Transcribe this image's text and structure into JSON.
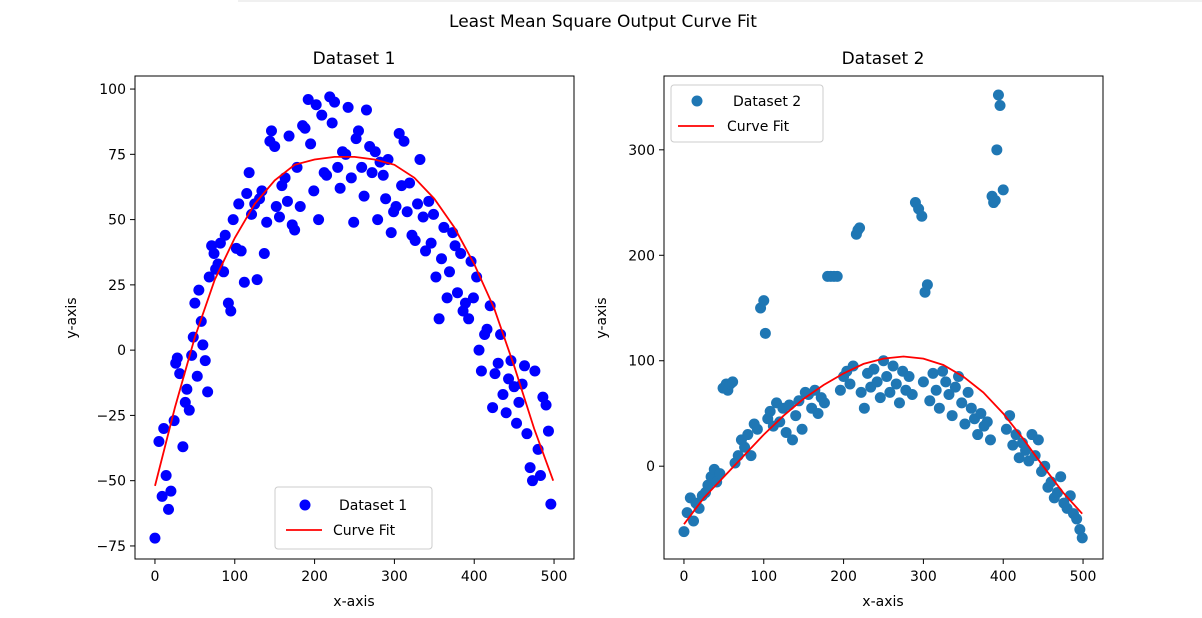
{
  "suptitle": "Least Mean Square Output Curve Fit",
  "chart_data": [
    {
      "type": "scatter",
      "title": "Dataset 1",
      "xlabel": "x-axis",
      "ylabel": "y-axis",
      "xlim": [
        -25,
        525
      ],
      "ylim": [
        -80,
        105
      ],
      "xticks": [
        0,
        100,
        200,
        300,
        400,
        500
      ],
      "yticks": [
        -75,
        -50,
        -25,
        0,
        25,
        50,
        75,
        100
      ],
      "ytick_labels": [
        "−75",
        "−50",
        "−25",
        "0",
        "25",
        "50",
        "75",
        "100"
      ],
      "legend_position": "lower center",
      "series": [
        {
          "name": "Dataset 1",
          "kind": "scatter",
          "color": "#0000ff",
          "x": [
            0,
            5,
            9,
            11,
            14,
            17,
            20,
            24,
            26,
            28,
            31,
            35,
            38,
            40,
            43,
            46,
            48,
            50,
            53,
            55,
            58,
            60,
            63,
            66,
            68,
            71,
            74,
            76,
            79,
            82,
            86,
            88,
            92,
            95,
            98,
            102,
            105,
            108,
            112,
            115,
            118,
            121,
            125,
            128,
            131,
            134,
            137,
            140,
            144,
            146,
            150,
            152,
            156,
            159,
            163,
            166,
            168,
            172,
            175,
            178,
            182,
            185,
            188,
            192,
            195,
            199,
            202,
            205,
            209,
            212,
            215,
            219,
            222,
            225,
            229,
            232,
            235,
            239,
            242,
            246,
            249,
            252,
            255,
            259,
            262,
            265,
            269,
            272,
            276,
            279,
            282,
            286,
            289,
            292,
            296,
            299,
            302,
            306,
            309,
            312,
            316,
            319,
            322,
            326,
            329,
            332,
            336,
            339,
            343,
            346,
            349,
            352,
            356,
            359,
            362,
            366,
            369,
            373,
            376,
            379,
            383,
            386,
            389,
            393,
            396,
            399,
            403,
            406,
            409,
            413,
            416,
            420,
            423,
            426,
            430,
            433,
            436,
            440,
            443,
            446,
            450,
            453,
            456,
            460,
            463,
            466,
            470,
            473,
            476,
            480,
            483,
            486,
            490,
            493,
            496
          ],
          "y": [
            -72,
            -35,
            -56,
            -30,
            -48,
            -61,
            -54,
            -27,
            -5,
            -3,
            -9,
            -37,
            -20,
            -15,
            -23,
            -2,
            5,
            18,
            -10,
            23,
            11,
            2,
            -4,
            -16,
            28,
            40,
            37,
            31,
            33,
            41,
            30,
            44,
            18,
            15,
            50,
            39,
            56,
            38,
            26,
            60,
            68,
            52,
            56,
            27,
            58,
            61,
            37,
            49,
            80,
            84,
            78,
            55,
            51,
            63,
            66,
            57,
            82,
            48,
            46,
            70,
            55,
            86,
            85,
            96,
            79,
            61,
            94,
            50,
            90,
            68,
            67,
            97,
            87,
            95,
            70,
            62,
            76,
            75,
            93,
            66,
            49,
            81,
            84,
            70,
            59,
            92,
            78,
            68,
            76,
            50,
            72,
            67,
            58,
            73,
            45,
            53,
            55,
            83,
            63,
            80,
            53,
            64,
            44,
            42,
            56,
            73,
            51,
            38,
            57,
            41,
            52,
            28,
            12,
            35,
            47,
            20,
            30,
            45,
            40,
            22,
            37,
            15,
            18,
            12,
            34,
            20,
            28,
            0,
            -8,
            6,
            8,
            17,
            -22,
            -9,
            -5,
            6,
            -17,
            -24,
            -11,
            -4,
            -14,
            -28,
            -20,
            -13,
            -6,
            -32,
            -45,
            -50,
            -8,
            -38,
            -48,
            -18,
            -21,
            -31,
            -59
          ]
        },
        {
          "name": "Curve Fit",
          "kind": "line",
          "color": "#ff0000",
          "x": [
            0,
            25,
            50,
            75,
            100,
            125,
            150,
            175,
            200,
            225,
            250,
            275,
            300,
            325,
            350,
            375,
            400,
            425,
            450,
            475,
            499
          ],
          "y": [
            -52,
            -22,
            5,
            27,
            43,
            56,
            65,
            71,
            73,
            74,
            74,
            73,
            71,
            66,
            58,
            47,
            33,
            16,
            -6,
            -30,
            -50
          ]
        }
      ]
    },
    {
      "type": "scatter",
      "title": "Dataset 2",
      "xlabel": "x-axis",
      "ylabel": "y-axis",
      "xlim": [
        -25,
        525
      ],
      "ylim": [
        -88,
        370
      ],
      "xticks": [
        0,
        100,
        200,
        300,
        400,
        500
      ],
      "yticks": [
        0,
        100,
        200,
        300
      ],
      "ytick_labels": [
        "0",
        "100",
        "200",
        "300"
      ],
      "legend_position": "upper left",
      "series": [
        {
          "name": "Dataset 2",
          "kind": "scatter",
          "color": "#1f77b4",
          "x": [
            0,
            4,
            8,
            12,
            15,
            19,
            23,
            27,
            30,
            34,
            38,
            41,
            45,
            49,
            53,
            55,
            58,
            61,
            64,
            68,
            72,
            76,
            80,
            84,
            88,
            92,
            96,
            100,
            102,
            105,
            108,
            112,
            116,
            120,
            124,
            128,
            132,
            136,
            140,
            144,
            148,
            152,
            156,
            160,
            164,
            168,
            172,
            176,
            180,
            184,
            188,
            192,
            196,
            200,
            204,
            208,
            212,
            216,
            218,
            220,
            222,
            226,
            230,
            234,
            238,
            242,
            246,
            250,
            254,
            258,
            262,
            266,
            270,
            274,
            278,
            282,
            286,
            290,
            294,
            298,
            300,
            302,
            305,
            308,
            312,
            316,
            320,
            324,
            328,
            332,
            336,
            340,
            344,
            348,
            352,
            356,
            360,
            364,
            368,
            372,
            376,
            380,
            384,
            386,
            388,
            390,
            392,
            394,
            396,
            400,
            404,
            408,
            412,
            416,
            420,
            424,
            428,
            432,
            436,
            440,
            444,
            448,
            452,
            456,
            460,
            464,
            468,
            472,
            476,
            480,
            484,
            488,
            492,
            496,
            499
          ],
          "y": [
            -62,
            -44,
            -30,
            -52,
            -35,
            -40,
            -28,
            -25,
            -18,
            -10,
            -3,
            -15,
            -7,
            74,
            78,
            72,
            78,
            80,
            3,
            10,
            25,
            18,
            30,
            10,
            40,
            35,
            150,
            157,
            126,
            45,
            52,
            38,
            60,
            42,
            55,
            32,
            58,
            25,
            48,
            62,
            35,
            70,
            68,
            55,
            72,
            50,
            65,
            60,
            180,
            180,
            180,
            180,
            72,
            85,
            90,
            78,
            95,
            220,
            224,
            226,
            70,
            55,
            88,
            75,
            92,
            80,
            65,
            100,
            85,
            70,
            95,
            78,
            60,
            90,
            72,
            85,
            68,
            250,
            244,
            237,
            80,
            165,
            172,
            62,
            88,
            72,
            55,
            90,
            80,
            68,
            48,
            75,
            85,
            60,
            40,
            70,
            55,
            45,
            30,
            50,
            38,
            42,
            25,
            256,
            250,
            252,
            300,
            352,
            342,
            262,
            35,
            48,
            20,
            30,
            8,
            22,
            15,
            5,
            30,
            10,
            25,
            -5,
            0,
            -20,
            -15,
            -30,
            -25,
            -10,
            -35,
            -40,
            -28,
            -45,
            -50,
            -60,
            -68
          ]
        },
        {
          "name": "Curve Fit",
          "kind": "line",
          "color": "#ff0000",
          "x": [
            0,
            25,
            50,
            75,
            100,
            125,
            150,
            175,
            200,
            225,
            250,
            275,
            300,
            325,
            350,
            375,
            400,
            425,
            450,
            475,
            499
          ],
          "y": [
            -55,
            -30,
            -10,
            10,
            30,
            48,
            64,
            77,
            88,
            97,
            102,
            104,
            102,
            96,
            85,
            70,
            50,
            26,
            0,
            -25,
            -45
          ]
        }
      ]
    }
  ]
}
